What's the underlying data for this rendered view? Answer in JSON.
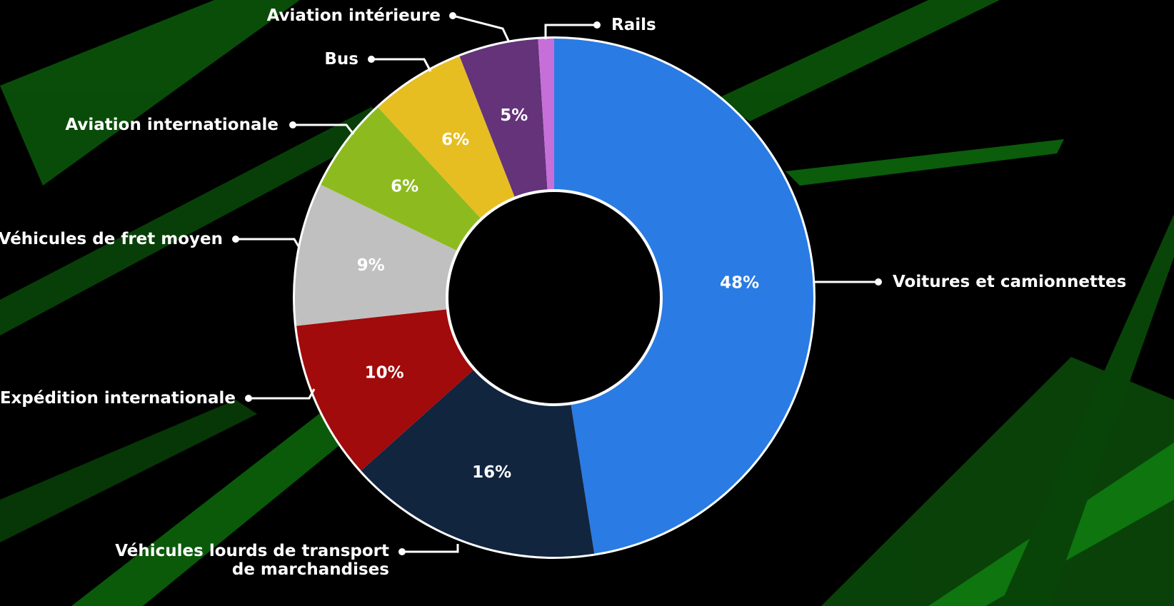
{
  "chart_data": {
    "type": "donut",
    "categories": [
      "Voitures et camionnettes",
      "Véhicules lourds de transport de marchandises",
      "Expédition internationale",
      "Véhicules de fret moyen",
      "Aviation internationale",
      "Bus",
      "Aviation intérieure",
      "Rails"
    ],
    "values": [
      48,
      16,
      10,
      9,
      6,
      6,
      5,
      1
    ],
    "value_labels": [
      "48%",
      "16%",
      "10%",
      "9%",
      "6%",
      "6%",
      "5%",
      null
    ],
    "colors": [
      "#2a7be4",
      "#11253f",
      "#a10b0b",
      "#c0c0c0",
      "#8dbb1f",
      "#e6be22",
      "#64337a",
      "#c76fd9"
    ]
  }
}
